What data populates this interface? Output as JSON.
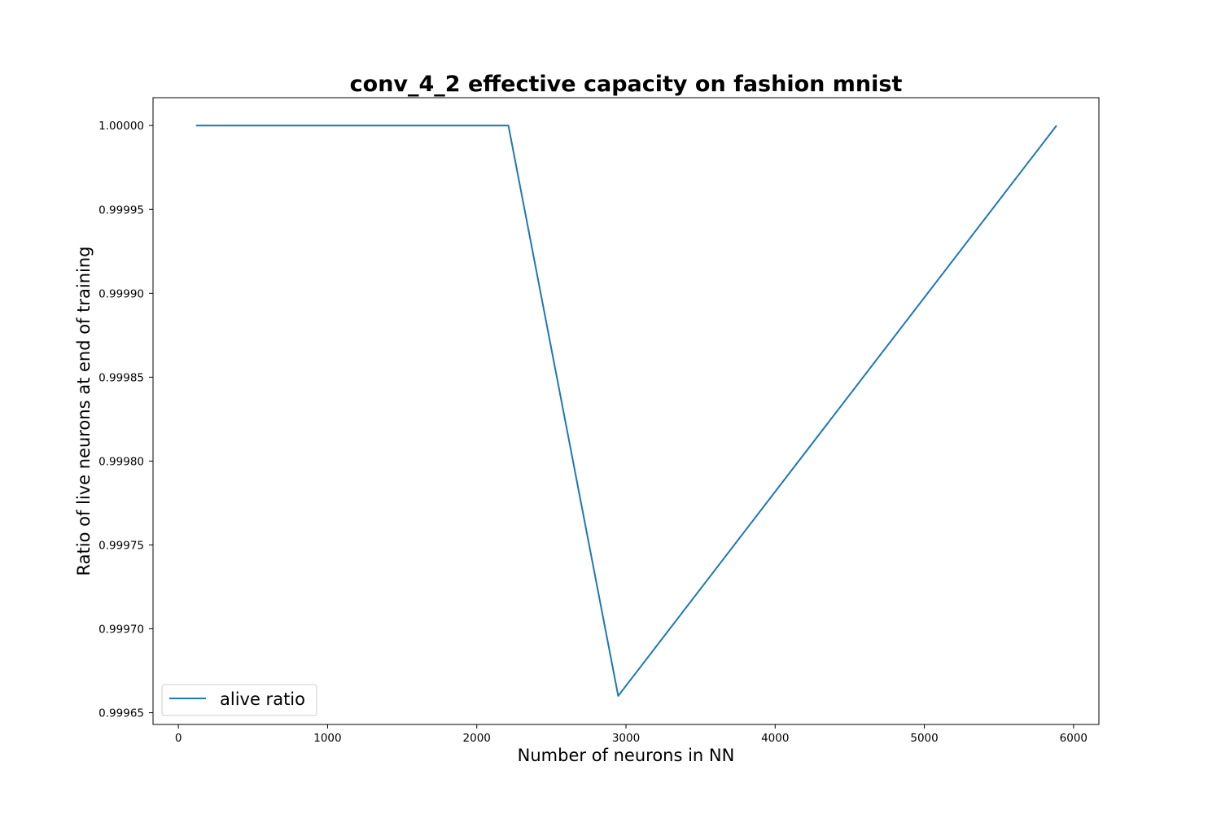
{
  "chart_data": {
    "type": "line",
    "title": "conv_4_2 effective capacity on fashion mnist",
    "xlabel": "Number of neurons in NN",
    "ylabel": "Ratio of live neurons at end of training",
    "xlim": [
      -170,
      6170
    ],
    "ylim": [
      0.999643,
      1.0000166
    ],
    "xticks": [
      0,
      1000,
      2000,
      3000,
      4000,
      5000,
      6000
    ],
    "xtick_labels": [
      "0",
      "1000",
      "2000",
      "3000",
      "4000",
      "5000",
      "6000"
    ],
    "yticks": [
      0.99965,
      0.9997,
      0.99975,
      0.9998,
      0.99985,
      0.9999,
      0.99995,
      1.0
    ],
    "ytick_labels": [
      "0.99965",
      "0.99970",
      "0.99975",
      "0.99980",
      "0.99985",
      "0.99990",
      "0.99995",
      "1.00000"
    ],
    "grid": false,
    "legend_position": "lower-left",
    "series": [
      {
        "name": "alive ratio",
        "color": "#1f77b4",
        "x": [
          118,
          2212,
          2948,
          5886
        ],
        "y": [
          1.0,
          1.0,
          0.99966,
          1.0
        ]
      }
    ]
  }
}
